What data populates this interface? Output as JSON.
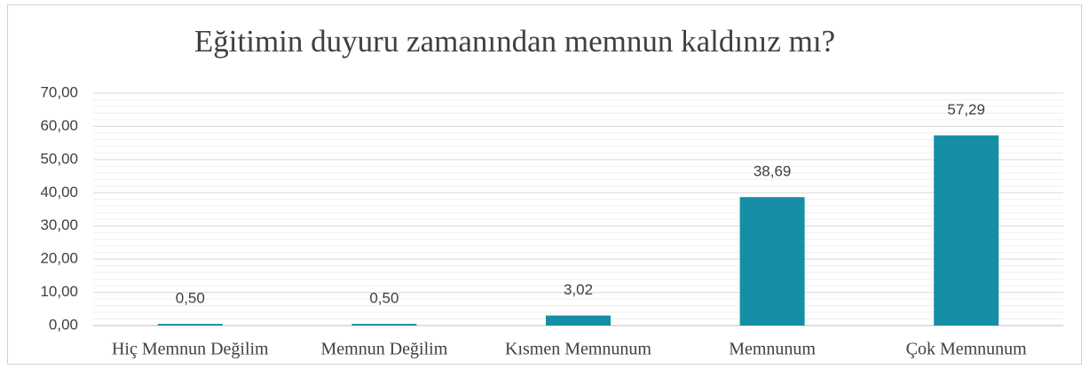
{
  "chart_data": {
    "type": "bar",
    "title": "Eğitimin duyuru zamanından memnun kaldınız mı?",
    "categories": [
      "Hiç Memnun Değilim",
      "Memnun Değilim",
      "Kısmen Memnunum",
      "Memnunum",
      "Çok Memnunum"
    ],
    "values": [
      0.5,
      0.5,
      3.02,
      38.69,
      57.29
    ],
    "value_labels": [
      "0,50",
      "0,50",
      "3,02",
      "38,69",
      "57,29"
    ],
    "color": "#168ea6",
    "ylim": [
      0,
      70
    ],
    "yticks": [
      {
        "value": 0,
        "label": "0,00"
      },
      {
        "value": 10,
        "label": "10,00"
      },
      {
        "value": 20,
        "label": "20,00"
      },
      {
        "value": 30,
        "label": "30,00"
      },
      {
        "value": 40,
        "label": "40,00"
      },
      {
        "value": 50,
        "label": "50,00"
      },
      {
        "value": 60,
        "label": "60,00"
      },
      {
        "value": 70,
        "label": "70,00"
      }
    ],
    "grid": true
  }
}
